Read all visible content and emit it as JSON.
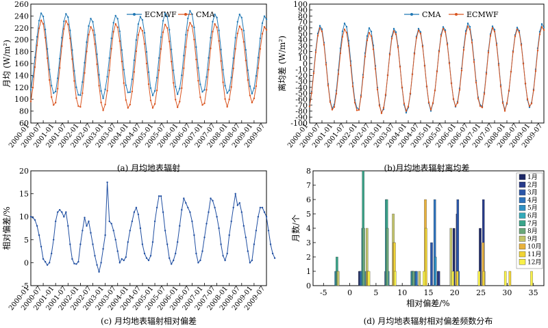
{
  "months": [
    "2000-01",
    "2000-07",
    "2001-01",
    "2001-07",
    "2002-01",
    "2002-07",
    "2003-01",
    "2003-07",
    "2004-01",
    "2004-07",
    "2005-01",
    "2005-07",
    "2006-01",
    "2006-07",
    "2007-01",
    "2007-07",
    "2008-01",
    "2008-07",
    "2009-01",
    "2009-07"
  ],
  "colors": {
    "ecmwf": "#1f77b4",
    "cma": "#d9531e",
    "panel_c": "#1f4ea1"
  },
  "chart_data": [
    {
      "type": "line",
      "caption": "(a) 月均地表辐射",
      "ylabel": "月均 (W/m²)",
      "ylim": [
        60,
        260
      ],
      "yticks": [
        60,
        80,
        100,
        120,
        140,
        160,
        180,
        200,
        220,
        240,
        260
      ],
      "x_range": [
        "2000-01",
        "2009-07"
      ],
      "legend": "top-center",
      "series": [
        {
          "name": "ECMWF",
          "peaks": [
            245,
            244,
            236,
            241,
            239,
            245,
            249,
            243,
            243,
            240
          ],
          "troughs": [
            110,
            107,
            101,
            111,
            106,
            108,
            112,
            110,
            109,
            113
          ]
        },
        {
          "name": "CMA",
          "peaks": [
            233,
            232,
            222,
            227,
            221,
            226,
            229,
            227,
            223,
            222
          ],
          "troughs": [
            90,
            88,
            81,
            85,
            85,
            86,
            90,
            87,
            94,
            96
          ]
        }
      ]
    },
    {
      "type": "line",
      "caption": "(b)月均地表辐射离均差",
      "ylabel": "离均差 (W/m²)",
      "ylim": [
        -100,
        100
      ],
      "yticks": [
        -100,
        -90,
        -80,
        -70,
        -60,
        -50,
        -40,
        -30,
        -20,
        -10,
        0,
        10,
        20,
        30,
        40,
        50,
        60,
        70,
        80,
        90,
        100
      ],
      "x_range": [
        "2000-01",
        "2009-07"
      ],
      "legend": "top-center",
      "series": [
        {
          "name": "CMA",
          "peaks": [
            64,
            68,
            60,
            59,
            59,
            62,
            68,
            63,
            61,
            67
          ],
          "troughs": [
            -76,
            -75,
            -83,
            -83,
            -80,
            -73,
            -70,
            -78,
            -74,
            -72
          ]
        },
        {
          "name": "ECMWF",
          "peaks": [
            60,
            58,
            52,
            55,
            56,
            59,
            63,
            60,
            58,
            62
          ],
          "troughs": [
            -78,
            -79,
            -84,
            -80,
            -78,
            -72,
            -72,
            -80,
            -72,
            -73
          ]
        }
      ]
    },
    {
      "type": "line",
      "caption": "(c) 月均地表辐射相对偏差",
      "ylabel": "相对偏差/%",
      "ylim": [
        -5,
        20
      ],
      "yticks": [
        -5,
        0,
        5,
        10,
        15,
        20
      ],
      "x_range": [
        "2000-01",
        "2009-07"
      ],
      "values": [
        10,
        9.8,
        9.3,
        8,
        6,
        3.5,
        0.8,
        0.2,
        -0.5,
        0,
        2,
        5,
        9,
        11,
        11.5,
        11,
        10,
        11,
        8,
        4,
        0.8,
        -0.2,
        -0.3,
        0.2,
        4,
        7,
        9.8,
        8,
        9,
        6.5,
        4,
        1.5,
        -0.5,
        -2,
        0,
        3,
        6,
        17.5,
        9,
        8.5,
        7,
        5,
        2.5,
        0,
        0.8,
        0.5,
        1.2,
        4.5,
        7,
        9,
        11,
        12,
        10.5,
        7.5,
        4,
        2,
        1,
        0.5,
        1.5,
        4.5,
        9,
        12,
        14.5,
        14.5,
        11,
        7,
        4,
        1,
        -0.3,
        0.5,
        2,
        4.5,
        8,
        11.5,
        14,
        13,
        12,
        11,
        9,
        6,
        2,
        0,
        0.5,
        2.5,
        5.5,
        8.5,
        11,
        14,
        13.5,
        12,
        10,
        7.5,
        4,
        1.5,
        0.5,
        2,
        6,
        9,
        12,
        15,
        12.5,
        13,
        11,
        8,
        5.5,
        2.5,
        0,
        0.5,
        4,
        7,
        10,
        12,
        12,
        11,
        10,
        7,
        4,
        2,
        1
      ]
    },
    {
      "type": "bar",
      "caption": "(d) 月均地表辐射相对偏差频数分布",
      "xlabel": "相对偏差/%",
      "ylabel": "月数/个",
      "xlim": [
        -7,
        37
      ],
      "ylim": [
        0,
        8
      ],
      "xticks": [
        -5,
        0,
        5,
        10,
        15,
        20,
        25,
        30,
        35
      ],
      "yticks": [
        0,
        1,
        2,
        3,
        4,
        5,
        6,
        7,
        8
      ],
      "legend": "right",
      "series": [
        {
          "name": "1月",
          "color": "#1c2766",
          "bars": [
            [
              2.5,
              1
            ],
            [
              7.5,
              1
            ],
            [
              12.5,
              1
            ],
            [
              17.5,
              1
            ],
            [
              20.5,
              4
            ],
            [
              25.5,
              4
            ]
          ]
        },
        {
          "name": "2月",
          "color": "#273a8a",
          "bars": [
            [
              2.5,
              1
            ],
            [
              12.5,
              1
            ],
            [
              17.5,
              1
            ],
            [
              21,
              5
            ],
            [
              26,
              6
            ]
          ]
        },
        {
          "name": "3月",
          "color": "#2a56a8",
          "bars": [
            [
              2.5,
              1
            ],
            [
              7.5,
              1
            ],
            [
              13,
              1
            ],
            [
              16,
              3
            ],
            [
              21,
              6
            ],
            [
              26,
              1
            ]
          ]
        },
        {
          "name": "4月",
          "color": "#2d73bd",
          "bars": [
            [
              2.5,
              1
            ],
            [
              7.5,
              1
            ],
            [
              13,
              1
            ],
            [
              16.5,
              6
            ],
            [
              21,
              1
            ]
          ]
        },
        {
          "name": "5月",
          "color": "#2f90c4",
          "bars": [
            [
              -2.5,
              1
            ],
            [
              3,
              1
            ],
            [
              7.5,
              1
            ],
            [
              12,
              1
            ],
            [
              16.5,
              2
            ]
          ]
        },
        {
          "name": "6月",
          "color": "#33aab9",
          "bars": [
            [
              -2.5,
              1
            ],
            [
              2.5,
              4
            ],
            [
              7,
              6
            ],
            [
              12,
              1
            ]
          ]
        },
        {
          "name": "7月",
          "color": "#3aa58a",
          "bars": [
            [
              -2.5,
              2
            ],
            [
              2.5,
              8
            ],
            [
              7,
              6
            ],
            [
              12,
              1
            ]
          ]
        },
        {
          "name": "8月",
          "color": "#6ba87a",
          "bars": [
            [
              -2.5,
              1
            ],
            [
              2.5,
              4
            ],
            [
              7,
              4
            ],
            [
              12,
              1
            ]
          ]
        },
        {
          "name": "9月",
          "color": "#c3c46a",
          "bars": [
            [
              -2.5,
              1
            ],
            [
              3,
              4
            ],
            [
              8,
              5
            ],
            [
              13,
              1
            ],
            [
              19,
              4
            ]
          ]
        },
        {
          "name": "10月",
          "color": "#e8b13c",
          "bars": [
            [
              3,
              1
            ],
            [
              8,
              3
            ],
            [
              14,
              6
            ],
            [
              20,
              1
            ],
            [
              25,
              3
            ]
          ]
        },
        {
          "name": "11月",
          "color": "#f1d436",
          "bars": [
            [
              3,
              1
            ],
            [
              8,
              3
            ],
            [
              14,
              4
            ],
            [
              20,
              1
            ],
            [
              25,
              1
            ],
            [
              30,
              1
            ]
          ]
        },
        {
          "name": "12月",
          "color": "#f8f04a",
          "bars": [
            [
              3,
              1
            ],
            [
              8,
              1
            ],
            [
              13.5,
              1
            ],
            [
              19,
              1
            ],
            [
              24,
              1
            ],
            [
              29,
              1
            ],
            [
              34,
              1
            ]
          ]
        }
      ]
    }
  ]
}
